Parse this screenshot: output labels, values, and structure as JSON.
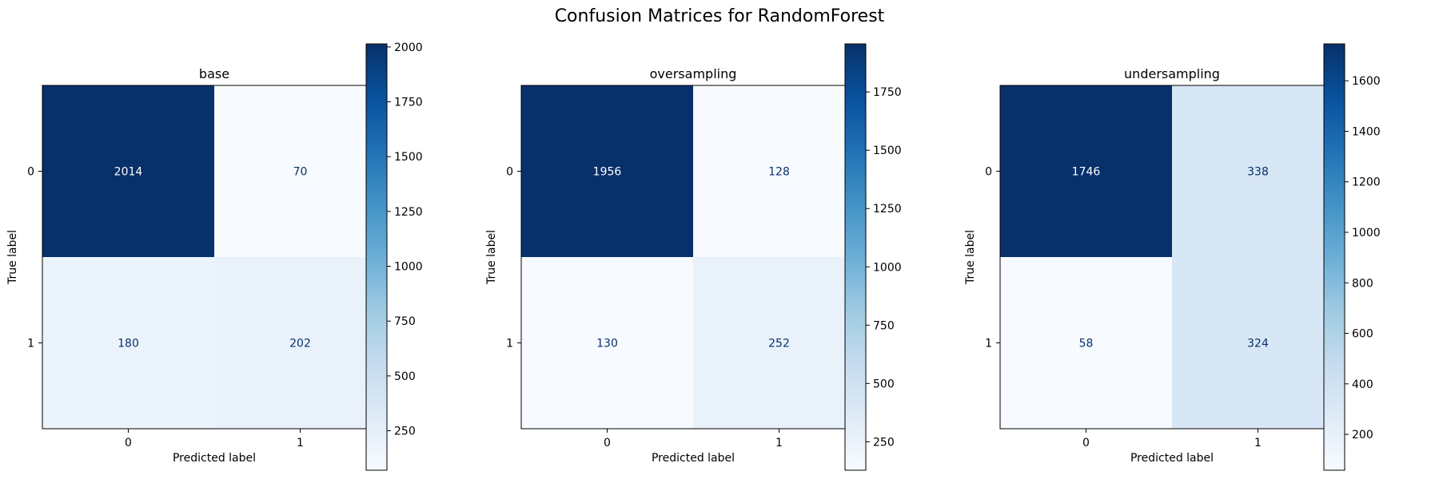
{
  "figure_title": "Confusion Matrices for RandomForest",
  "chart_data": [
    {
      "type": "heatmap",
      "title": "base",
      "xlabel": "Predicted label",
      "ylabel": "True label",
      "x_tick_labels": [
        "0",
        "1"
      ],
      "y_tick_labels": [
        "0",
        "1"
      ],
      "matrix": [
        [
          2014,
          70
        ],
        [
          180,
          202
        ]
      ],
      "colormap": "Blues",
      "colorbar_range": [
        70,
        2014
      ],
      "colorbar_ticks": [
        250,
        500,
        750,
        1000,
        1250,
        1500,
        1750,
        2000
      ]
    },
    {
      "type": "heatmap",
      "title": "oversampling",
      "xlabel": "Predicted label",
      "ylabel": "True label",
      "x_tick_labels": [
        "0",
        "1"
      ],
      "y_tick_labels": [
        "0",
        "1"
      ],
      "matrix": [
        [
          1956,
          128
        ],
        [
          130,
          252
        ]
      ],
      "colormap": "Blues",
      "colorbar_range": [
        128,
        1956
      ],
      "colorbar_ticks": [
        250,
        500,
        750,
        1000,
        1250,
        1500,
        1750
      ]
    },
    {
      "type": "heatmap",
      "title": "undersampling",
      "xlabel": "Predicted label",
      "ylabel": "True label",
      "x_tick_labels": [
        "0",
        "1"
      ],
      "y_tick_labels": [
        "0",
        "1"
      ],
      "matrix": [
        [
          1746,
          338
        ],
        [
          58,
          324
        ]
      ],
      "colormap": "Blues",
      "colorbar_range": [
        58,
        1746
      ],
      "colorbar_ticks": [
        200,
        400,
        600,
        800,
        1000,
        1200,
        1400,
        1600
      ]
    }
  ]
}
